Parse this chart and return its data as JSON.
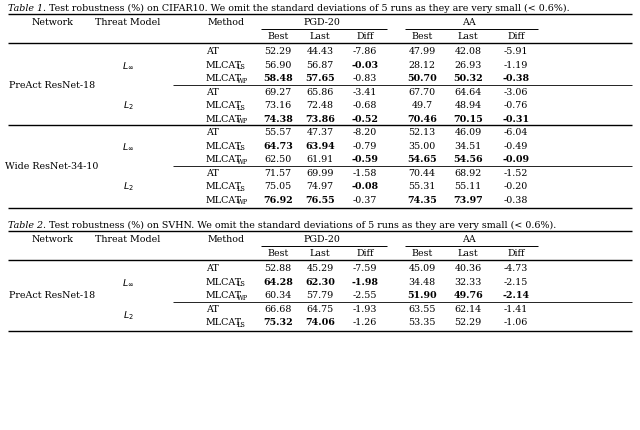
{
  "table1_caption_italic": "Table 1.",
  "table1_caption_rest": " Test robustness (%) on CIFAR10. We omit the standard deviations of 5 runs as they are very small (< 0.6%).",
  "table2_caption_italic": "Table 2.",
  "table2_caption_rest": " Test robustness (%) on SVHN. We omit the standard deviations of 5 runs as they are very small (< 0.6%).",
  "table1_rows": [
    [
      "PreAct ResNet-18",
      "L_inf",
      "AT",
      "52.29",
      "44.43",
      "-7.86",
      "47.99",
      "42.08",
      "-5.91"
    ],
    [
      "",
      "",
      "MLCAT_LS",
      "56.90",
      "56.87",
      "-0.03",
      "28.12",
      "26.93",
      "-1.19"
    ],
    [
      "",
      "",
      "MLCAT_WP",
      "58.48",
      "57.65",
      "-0.83",
      "50.70",
      "50.32",
      "-0.38"
    ],
    [
      "",
      "L_2",
      "AT",
      "69.27",
      "65.86",
      "-3.41",
      "67.70",
      "64.64",
      "-3.06"
    ],
    [
      "",
      "",
      "MLCAT_LS",
      "73.16",
      "72.48",
      "-0.68",
      "49.7",
      "48.94",
      "-0.76"
    ],
    [
      "",
      "",
      "MLCAT_WP",
      "74.38",
      "73.86",
      "-0.52",
      "70.46",
      "70.15",
      "-0.31"
    ],
    [
      "Wide ResNet-34-10",
      "L_inf",
      "AT",
      "55.57",
      "47.37",
      "-8.20",
      "52.13",
      "46.09",
      "-6.04"
    ],
    [
      "",
      "",
      "MLCAT_LS",
      "64.73",
      "63.94",
      "-0.79",
      "35.00",
      "34.51",
      "-0.49"
    ],
    [
      "",
      "",
      "MLCAT_WP",
      "62.50",
      "61.91",
      "-0.59",
      "54.65",
      "54.56",
      "-0.09"
    ],
    [
      "",
      "L_2",
      "AT",
      "71.57",
      "69.99",
      "-1.58",
      "70.44",
      "68.92",
      "-1.52"
    ],
    [
      "",
      "",
      "MLCAT_LS",
      "75.05",
      "74.97",
      "-0.08",
      "55.31",
      "55.11",
      "-0.20"
    ],
    [
      "",
      "",
      "MLCAT_WP",
      "76.92",
      "76.55",
      "-0.37",
      "74.35",
      "73.97",
      "-0.38"
    ]
  ],
  "table1_bold": {
    "1,5": true,
    "2,3": true,
    "2,4": true,
    "2,6": true,
    "2,7": true,
    "2,8": true,
    "5,3": true,
    "5,4": true,
    "5,5": true,
    "5,6": true,
    "5,7": true,
    "5,8": true,
    "7,3": true,
    "7,4": true,
    "8,5": true,
    "8,6": true,
    "8,7": true,
    "8,8": true,
    "10,5": true,
    "11,3": true,
    "11,4": true,
    "11,6": true,
    "11,7": true
  },
  "table2_rows": [
    [
      "PreAct ResNet-18",
      "L_inf",
      "AT",
      "52.88",
      "45.29",
      "-7.59",
      "45.09",
      "40.36",
      "-4.73"
    ],
    [
      "",
      "",
      "MLCAT_LS",
      "64.28",
      "62.30",
      "-1.98",
      "34.48",
      "32.33",
      "-2.15"
    ],
    [
      "",
      "",
      "MLCAT_WP",
      "60.34",
      "57.79",
      "-2.55",
      "51.90",
      "49.76",
      "-2.14"
    ],
    [
      "",
      "L_2",
      "AT",
      "66.68",
      "64.75",
      "-1.93",
      "63.55",
      "62.14",
      "-1.41"
    ],
    [
      "",
      "",
      "MLCAT_LS",
      "75.32",
      "74.06",
      "-1.26",
      "53.35",
      "52.29",
      "-1.06"
    ]
  ],
  "table2_bold": {
    "1,3": true,
    "1,4": true,
    "1,5": true,
    "2,6": true,
    "2,7": true,
    "2,8": true,
    "4,3": true,
    "4,4": true
  },
  "bg_color": "#ffffff",
  "text_color": "#000000",
  "fs": 6.8
}
